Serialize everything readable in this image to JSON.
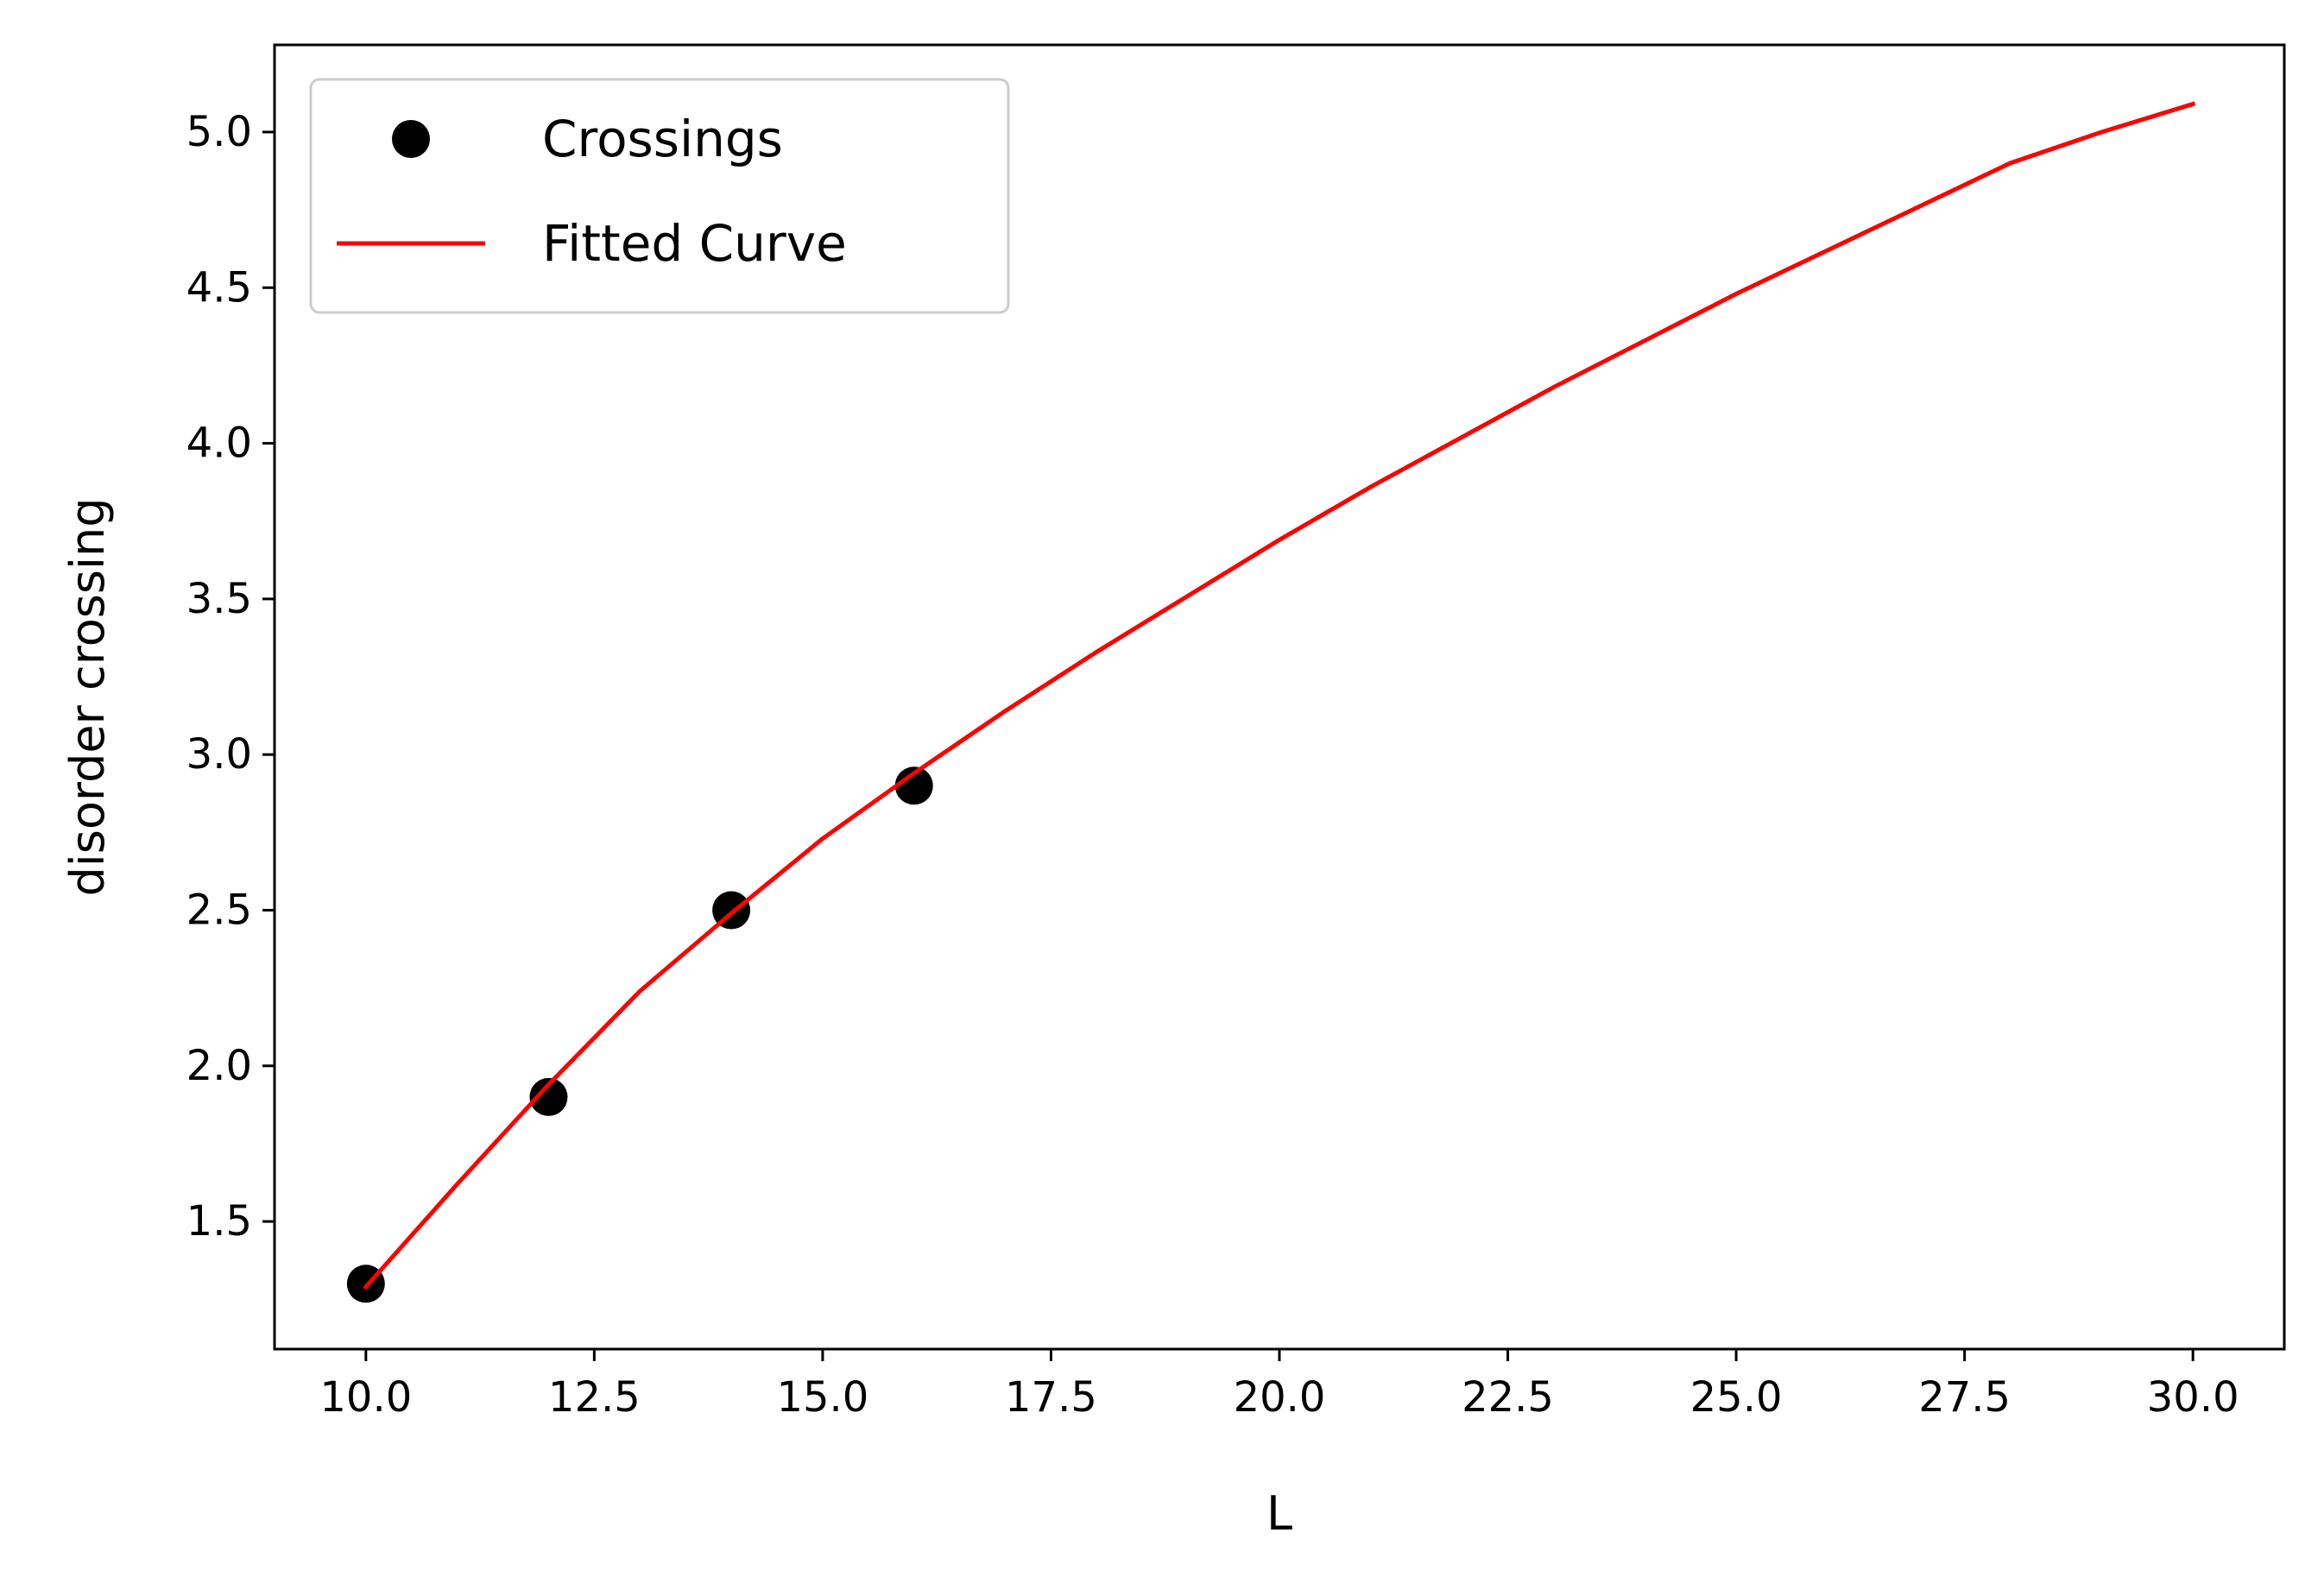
{
  "chart_data": {
    "type": "scatter",
    "title": "",
    "xlabel": "L",
    "ylabel": "disorder crossing",
    "xlim": [
      9.0,
      31.0
    ],
    "ylim": [
      1.09,
      5.28
    ],
    "xticks": [
      10.0,
      12.5,
      15.0,
      17.5,
      20.0,
      22.5,
      25.0,
      27.5,
      30.0
    ],
    "xtick_labels": [
      "10.0",
      "12.5",
      "15.0",
      "17.5",
      "20.0",
      "22.5",
      "25.0",
      "27.5",
      "30.0"
    ],
    "yticks": [
      1.5,
      2.0,
      2.5,
      3.0,
      3.5,
      4.0,
      4.5,
      5.0
    ],
    "ytick_labels": [
      "1.5",
      "2.0",
      "2.5",
      "3.0",
      "3.5",
      "4.0",
      "4.5",
      "5.0"
    ],
    "grid": false,
    "legend": {
      "position": "top-left"
    },
    "series": [
      {
        "name": "Crossings",
        "kind": "markers",
        "color": "#000000",
        "x": [
          10,
          12,
          14,
          16
        ],
        "y": [
          1.3,
          1.9,
          2.5,
          2.9
        ]
      },
      {
        "name": "Fitted Curve",
        "kind": "line",
        "color": "#ff0000",
        "x": [
          10,
          11,
          12,
          13,
          14,
          15,
          16,
          17,
          18,
          19,
          20,
          21,
          22,
          23,
          24,
          25,
          26,
          27,
          28,
          29,
          30
        ],
        "y": [
          1.29,
          1.62,
          1.94,
          2.24,
          2.49,
          2.73,
          2.94,
          3.14,
          3.33,
          3.51,
          3.69,
          3.86,
          4.02,
          4.18,
          4.33,
          4.48,
          4.62,
          4.76,
          4.9,
          5.0,
          5.09
        ]
      }
    ]
  }
}
